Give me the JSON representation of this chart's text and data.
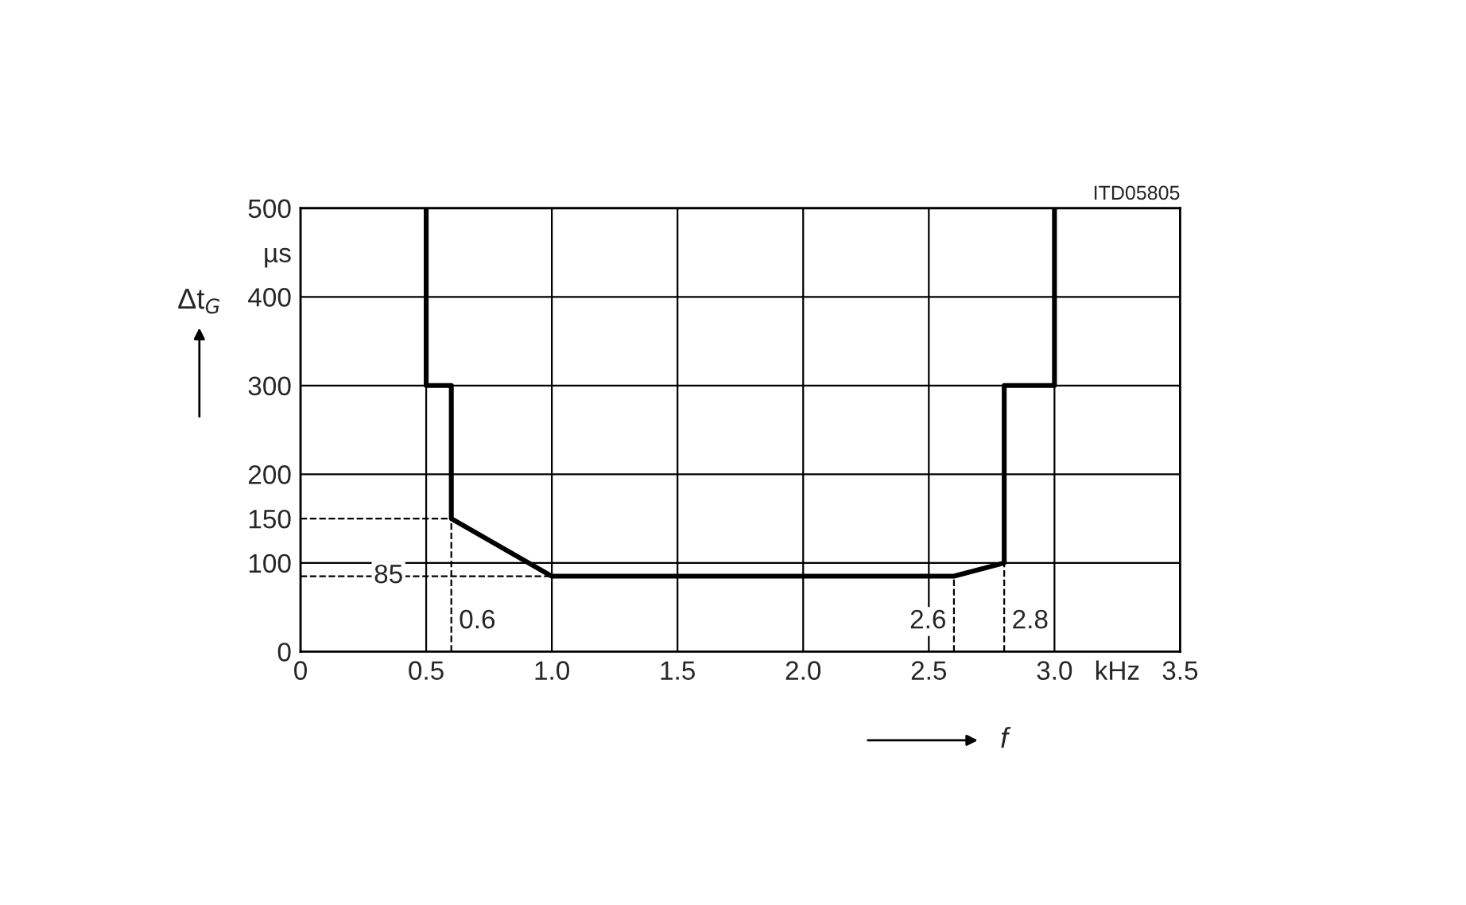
{
  "chart_data": {
    "type": "line",
    "xlabel": "f",
    "ylabel": "Δt$_{G}$",
    "x": [
      0.5,
      0.5,
      0.6,
      0.6,
      1.0,
      2.6,
      2.8,
      2.8,
      3.0,
      3.0
    ],
    "series": [
      {
        "color": "#000000",
        "values": [
          500,
          300,
          300,
          150,
          85,
          85,
          100,
          300,
          300,
          500
        ]
      }
    ],
    "xlim": [
      0,
      3.5
    ],
    "xticks": [
      0,
      0.5,
      {
        "value": 1.0,
        "label": "1.0"
      },
      1.5,
      {
        "value": 2.0,
        "label": "2.0"
      },
      2.5,
      {
        "value": 3.0,
        "label": "3.0"
      },
      {
        "value": 3.25,
        "label": "kHz"
      },
      3.5
    ],
    "ylim": [
      0,
      500
    ],
    "yticks": [
      0,
      100,
      150,
      200,
      300,
      400,
      {
        "value": 450,
        "label": "µs"
      },
      500
    ],
    "grid": true,
    "legend": false,
    "marker": "none",
    "line_style": "solid",
    "ref_lines": [
      {
        "axis": "y",
        "value": 150,
        "line_style": "dashed",
        "color": "#000000"
      },
      {
        "axis": "y",
        "value": 85,
        "label": "85",
        "line_style": "dashed",
        "color": "#000000"
      },
      {
        "axis": "x",
        "value": 0.6,
        "label": "0.6",
        "line_style": "dashed",
        "color": "#000000"
      },
      {
        "axis": "x",
        "value": 2.6,
        "label": "2.6",
        "line_style": "dashed",
        "color": "#000000"
      },
      {
        "axis": "x",
        "value": 2.8,
        "label": "2.8",
        "line_style": "dashed",
        "color": "#000000"
      }
    ],
    "annotations": [
      "ITD05805"
    ]
  }
}
